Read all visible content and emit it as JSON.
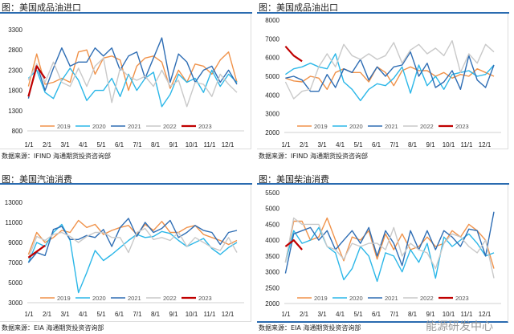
{
  "colors": {
    "2019": "#f0924a",
    "2020": "#2cb7e8",
    "2021": "#2e6db4",
    "2022": "#c9c9c9",
    "2023": "#c00000",
    "rule": "#2a6bb0"
  },
  "watermark": "能源研发中心",
  "chart_data": [
    {
      "type": "line",
      "title": "图：美国成品油进口",
      "source": "数据来源：IFIND    海通期货投资咨询部",
      "x_tick_labels": [
        "1/1",
        "2/1",
        "3/1",
        "4/1",
        "5/1",
        "6/1",
        "7/1",
        "8/1",
        "9/1",
        "10/1",
        "11/1",
        "12/1"
      ],
      "ylim": [
        800,
        3300
      ],
      "yticks": [
        800,
        1300,
        1800,
        2300,
        2800,
        3300
      ],
      "legend": "bottom",
      "grid": false,
      "series": [
        {
          "name": "2019",
          "values": [
            1900,
            2700,
            1950,
            2000,
            2100,
            2000,
            2750,
            2800,
            2200,
            2600,
            2650,
            2550,
            1800,
            2400,
            2600,
            2650,
            2500,
            1850,
            2300,
            2000,
            2450,
            2400,
            2200,
            2550,
            2750,
            2000
          ]
        },
        {
          "name": "2020",
          "values": [
            2100,
            2300,
            1750,
            1600,
            2050,
            2350,
            2050,
            1550,
            1800,
            1800,
            2100,
            1650,
            2200,
            1800,
            2100,
            2250,
            1400,
            1700,
            2200,
            2000,
            2100,
            1750,
            2300,
            1900,
            2200,
            2000
          ]
        },
        {
          "name": "2021",
          "values": [
            1600,
            2450,
            1800,
            2350,
            2850,
            2400,
            2500,
            2500,
            2850,
            2650,
            2850,
            2300,
            2650,
            2750,
            2100,
            2600,
            3100,
            2000,
            2700,
            2500,
            2000,
            2300,
            2400,
            2000,
            2300,
            1950
          ]
        },
        {
          "name": "2022",
          "values": [
            2050,
            2450,
            2000,
            2500,
            2000,
            1900,
            2350,
            1900,
            2400,
            2600,
            1500,
            2350,
            2150,
            2050,
            2150,
            1900,
            2300,
            1900,
            2050,
            1400,
            2000,
            1950,
            1650,
            2200,
            1950,
            1750
          ]
        },
        {
          "name": "2023",
          "values": [
            1650,
            2400,
            2100
          ]
        }
      ]
    },
    {
      "type": "line",
      "title": "图：美国成品油出口",
      "source": "数据来源：IFIND    海通期货投资咨询部",
      "x_tick_labels": [
        "1/1",
        "2/1",
        "3/1",
        "4/1",
        "5/1",
        "6/1",
        "7/1",
        "8/1",
        "9/1",
        "10/1",
        "11/1",
        "12/1"
      ],
      "ylim": [
        2000,
        8000
      ],
      "yticks": [
        2000,
        3000,
        4000,
        5000,
        6000,
        7000,
        8000
      ],
      "legend": "bottom",
      "grid": false,
      "series": [
        {
          "name": "2019",
          "values": [
            4900,
            4750,
            4700,
            5000,
            4900,
            4300,
            5200,
            5400,
            5200,
            5200,
            4700,
            5500,
            5200,
            4500,
            5300,
            5500,
            5300,
            5300,
            5000,
            5200,
            4900,
            5100,
            5000,
            5400,
            5200,
            5000
          ]
        },
        {
          "name": "2020",
          "values": [
            5100,
            5400,
            5500,
            5700,
            5500,
            5400,
            6200,
            4700,
            4300,
            3700,
            4300,
            4600,
            4500,
            4900,
            5500,
            4100,
            5600,
            4500,
            5000,
            4300,
            5100,
            5200,
            5300,
            5000,
            5100,
            5600
          ]
        },
        {
          "name": "2021",
          "values": [
            4900,
            5000,
            4800,
            4200,
            4200,
            5100,
            4400,
            5400,
            5200,
            5900,
            4800,
            5500,
            5000,
            5500,
            5600,
            6300,
            5000,
            5700,
            4400,
            4700,
            5300,
            4300,
            6100,
            4800,
            4400,
            5600
          ]
        },
        {
          "name": "2022",
          "values": [
            4700,
            3800,
            4200,
            4300,
            5500,
            6200,
            5500,
            6700,
            6100,
            5900,
            6200,
            5900,
            6100,
            6800,
            5700,
            6400,
            6700,
            6200,
            6500,
            6100,
            6900,
            5200,
            6200,
            5700,
            6700,
            6300
          ]
        },
        {
          "name": "2023",
          "values": [
            6600,
            6100,
            5800
          ]
        }
      ]
    },
    {
      "type": "line",
      "title": "图：美国汽油消费",
      "source": "数据来源：EIA    海通期货投资咨询部",
      "x_tick_labels": [
        "1/1",
        "2/1",
        "3/1",
        "4/1",
        "5/1",
        "6/1",
        "7/1",
        "8/1",
        "9/1",
        "10/1",
        "11/1",
        "12/1"
      ],
      "ylim": [
        3000,
        13000
      ],
      "yticks": [
        3000,
        5000,
        7000,
        9000,
        11000,
        13000
      ],
      "legend": "bottom",
      "grid": false,
      "series": [
        {
          "name": "2019",
          "values": [
            7800,
            10000,
            9000,
            9500,
            10200,
            10000,
            11200,
            10500,
            10800,
            9800,
            10200,
            10500,
            10700,
            9800,
            10800,
            10200,
            11100,
            10000,
            10000,
            10500,
            10700,
            9800,
            9500,
            9200,
            8800,
            9200
          ]
        },
        {
          "name": "2020",
          "values": [
            7000,
            9000,
            8600,
            10000,
            10800,
            9200,
            4000,
            6000,
            8200,
            7200,
            7800,
            8500,
            9200,
            9800,
            9500,
            9600,
            10100,
            9900,
            9200,
            8600,
            9000,
            9400,
            8400,
            7800,
            8500,
            9000
          ]
        },
        {
          "name": "2021",
          "values": [
            7000,
            8000,
            7700,
            10300,
            10600,
            9300,
            9300,
            9700,
            9500,
            10300,
            8600,
            10500,
            11400,
            9600,
            11000,
            10000,
            10400,
            11200,
            9500,
            10000,
            10700,
            10200,
            10000,
            8800,
            10000,
            10200
          ]
        },
        {
          "name": "2022",
          "values": [
            7400,
            9600,
            9200,
            9800,
            10000,
            9600,
            9000,
            9600,
            10000,
            10000,
            9500,
            9500,
            8000,
            10000,
            10400,
            9300,
            9500,
            9200,
            10000,
            8600,
            9500,
            9000,
            8500,
            8200,
            9500,
            8000
          ]
        },
        {
          "name": "2023",
          "values": [
            7500,
            8100,
            8700
          ]
        }
      ]
    },
    {
      "type": "line",
      "title": "图：美国柴油消费",
      "source": "数据来源：EIA    海通期货投资咨询部",
      "x_tick_labels": [
        "1/1",
        "2/1",
        "3/1",
        "4/1",
        "5/1",
        "6/1",
        "7/1",
        "8/1",
        "9/1",
        "10/1",
        "11/1",
        "12/1"
      ],
      "ylim": [
        2000,
        5500
      ],
      "yticks": [
        2000,
        2500,
        3000,
        3500,
        4000,
        4500,
        5000,
        5500
      ],
      "legend": "bottom",
      "grid": false,
      "series": [
        {
          "name": "2019",
          "values": [
            3300,
            4600,
            4600,
            4000,
            4100,
            4700,
            4000,
            3350,
            4100,
            4000,
            4300,
            3400,
            4200,
            3700,
            4200,
            3700,
            3800,
            4100,
            3800,
            3900,
            4300,
            4100,
            4500,
            4300,
            4000,
            3100
          ]
        },
        {
          "name": "2020",
          "values": [
            3300,
            4300,
            3900,
            4000,
            4400,
            3800,
            3600,
            2750,
            3100,
            3800,
            3500,
            2700,
            3600,
            3500,
            3000,
            3700,
            3300,
            3900,
            2800,
            4100,
            3800,
            4000,
            4200,
            3900,
            3500,
            3600
          ]
        },
        {
          "name": "2021",
          "values": [
            2950,
            4200,
            4300,
            4400,
            4000,
            4300,
            3700,
            4000,
            4300,
            3900,
            4400,
            3500,
            4300,
            3900,
            3200,
            4300,
            3700,
            4300,
            3700,
            4300,
            4100,
            3800,
            4350,
            4300,
            3500,
            4900
          ]
        },
        {
          "name": "2022",
          "values": [
            3300,
            4700,
            4500,
            4500,
            4500,
            3800,
            3700,
            3400,
            3900,
            3800,
            3900,
            3900,
            3700,
            4400,
            3500,
            3900,
            3700,
            3600,
            3100,
            3900,
            4200,
            4100,
            3800,
            3600,
            4000,
            2800
          ]
        },
        {
          "name": "2023",
          "values": [
            3800,
            4000,
            3700
          ]
        }
      ]
    }
  ]
}
